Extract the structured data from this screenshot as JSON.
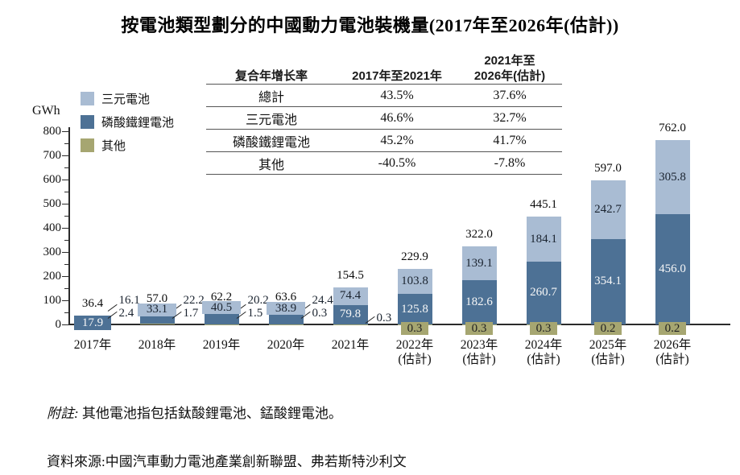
{
  "page_title": "按電池類型劃分的中國動力電池裝機量(2017年至2026年(估計))",
  "legend": {
    "items": [
      {
        "label": "三元電池",
        "color": "#a9bcd3"
      },
      {
        "label": "磷酸鐵鋰電池",
        "color": "#4d7195"
      },
      {
        "label": "其他",
        "color": "#a6a671"
      }
    ]
  },
  "cagr_table": {
    "metric_label": "复合年增长率",
    "period1_label": "2017年至2021年",
    "period2_label_line1": "2021年至",
    "period2_label_line2": "2026年(估計)",
    "rows": [
      {
        "label": "總計",
        "cagr_2017_2021": "43.5%",
        "cagr_2021_2026": "37.6%"
      },
      {
        "label": "三元電池",
        "cagr_2017_2021": "46.6%",
        "cagr_2021_2026": "32.7%"
      },
      {
        "label": "磷酸鐵鋰電池",
        "cagr_2017_2021": "45.2%",
        "cagr_2021_2026": "41.7%"
      },
      {
        "label": "其他",
        "cagr_2017_2021": "-40.5%",
        "cagr_2021_2026": "-7.8%"
      }
    ]
  },
  "chart_data": {
    "type": "bar",
    "stacked": true,
    "stack_order": "bottom-to-top",
    "unit": "GWh",
    "title": "按電池類型劃分的中國動力電池裝機量(2017年至2026年(估計))",
    "ylim": [
      0,
      800
    ],
    "yticks": [
      0,
      100,
      200,
      300,
      400,
      500,
      600,
      700,
      800
    ],
    "grid": false,
    "legend_position": "top-left",
    "categories": [
      "2017年",
      "2018年",
      "2019年",
      "2020年",
      "2021年",
      "2022年",
      "2023年",
      "2024年",
      "2025年",
      "2026年"
    ],
    "category_suffix": [
      "",
      "",
      "",
      "",
      "",
      "(估計)",
      "(估計)",
      "(估計)",
      "(估計)",
      "(估計)"
    ],
    "series": [
      {
        "name": "其他",
        "color": "#a6a671",
        "values": [
          2.4,
          1.7,
          1.5,
          0.3,
          0.3,
          0.3,
          0.3,
          0.3,
          0.2,
          0.2
        ]
      },
      {
        "name": "磷酸鐵鋰電池",
        "color": "#4d7195",
        "values": [
          17.9,
          33.1,
          40.5,
          38.9,
          79.8,
          125.8,
          182.6,
          260.7,
          354.1,
          456.0
        ]
      },
      {
        "name": "三元電池",
        "color": "#a9bcd3",
        "values": [
          16.1,
          22.2,
          20.2,
          24.4,
          74.4,
          103.8,
          139.1,
          184.1,
          242.7,
          305.8
        ]
      }
    ],
    "totals": [
      36.4,
      57.0,
      62.2,
      63.6,
      154.5,
      229.9,
      322.0,
      445.1,
      597.0,
      762.0
    ],
    "label_layout": [
      {
        "ternary": "callout",
        "lfp": "badge",
        "other": "callout"
      },
      {
        "ternary": "callout",
        "lfp": "overlay",
        "other": "callout"
      },
      {
        "ternary": "callout",
        "lfp": "overlay",
        "other": "callout"
      },
      {
        "ternary": "callout",
        "lfp": "overlay",
        "other": "callout"
      },
      {
        "ternary": "inside",
        "lfp": "inside",
        "other": "callout"
      },
      {
        "ternary": "inside",
        "lfp": "inside",
        "other": "axis-badge"
      },
      {
        "ternary": "inside",
        "lfp": "inside",
        "other": "axis-badge"
      },
      {
        "ternary": "inside",
        "lfp": "inside",
        "other": "axis-badge"
      },
      {
        "ternary": "inside",
        "lfp": "inside",
        "other": "axis-badge"
      },
      {
        "ternary": "inside",
        "lfp": "inside",
        "other": "axis-badge"
      }
    ]
  },
  "footnotes": {
    "note_label": "附註:",
    "note_text": " 其他電池指包括鈦酸鋰電池、錳酸鋰電池。",
    "source": "資料來源:中國汽車動力電池產業創新聯盟、弗若斯特沙利文"
  }
}
